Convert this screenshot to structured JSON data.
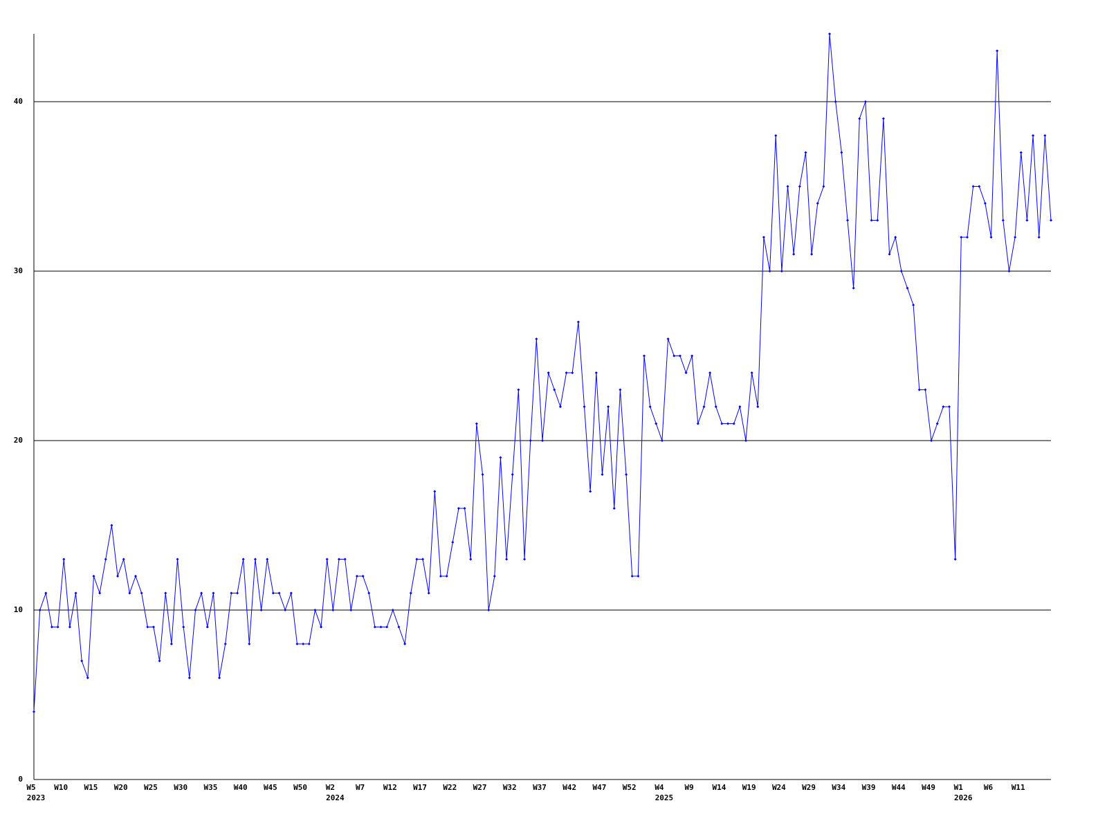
{
  "chart_data": {
    "type": "line",
    "categories": [
      "W5",
      null,
      null,
      null,
      null,
      "W10",
      null,
      null,
      null,
      null,
      "W15",
      null,
      null,
      null,
      null,
      "W20",
      null,
      null,
      null,
      null,
      "W25",
      null,
      null,
      null,
      null,
      "W30",
      null,
      null,
      null,
      null,
      "W35",
      null,
      null,
      null,
      null,
      "W40",
      null,
      null,
      null,
      null,
      "W45",
      null,
      null,
      null,
      null,
      "W50",
      null,
      null,
      null,
      null,
      "W2",
      null,
      null,
      null,
      null,
      "W7",
      null,
      null,
      null,
      null,
      "W12",
      null,
      null,
      null,
      null,
      "W17",
      null,
      null,
      null,
      null,
      "W22",
      null,
      null,
      null,
      null,
      "W27",
      null,
      null,
      null,
      null,
      "W32",
      null,
      null,
      null,
      null,
      "W37",
      null,
      null,
      null,
      null,
      "W42",
      null,
      null,
      null,
      null,
      "W47",
      null,
      null,
      null,
      null,
      "W52",
      null,
      null,
      null,
      null,
      "W4",
      null,
      null,
      null,
      null,
      "W9",
      null,
      null,
      null,
      null,
      "W14",
      null,
      null,
      null,
      null,
      "W19",
      null,
      null,
      null,
      null,
      "W24",
      null,
      null,
      null,
      null,
      "W29",
      null,
      null,
      null,
      null,
      "W34",
      null,
      null,
      null,
      null,
      "W39",
      null,
      null,
      null,
      null,
      "W44",
      null,
      null,
      null,
      null,
      "W49",
      null,
      null,
      null,
      null,
      "W1",
      null,
      null,
      null,
      null,
      "W6",
      null,
      null,
      null,
      null,
      "W11",
      null,
      null,
      null,
      null,
      null
    ],
    "years": [
      "2023",
      null,
      null,
      null,
      null,
      null,
      null,
      null,
      null,
      null,
      null,
      null,
      null,
      null,
      null,
      null,
      null,
      null,
      null,
      null,
      null,
      null,
      null,
      null,
      null,
      null,
      null,
      null,
      null,
      null,
      null,
      null,
      null,
      null,
      null,
      null,
      null,
      null,
      null,
      null,
      null,
      null,
      null,
      null,
      null,
      null,
      null,
      null,
      null,
      null,
      "2024",
      null,
      null,
      null,
      null,
      null,
      null,
      null,
      null,
      null,
      null,
      null,
      null,
      null,
      null,
      null,
      null,
      null,
      null,
      null,
      null,
      null,
      null,
      null,
      null,
      null,
      null,
      null,
      null,
      null,
      null,
      null,
      null,
      null,
      null,
      null,
      null,
      null,
      null,
      null,
      null,
      null,
      null,
      null,
      null,
      null,
      null,
      null,
      null,
      null,
      null,
      null,
      null,
      null,
      null,
      "2025",
      null,
      null,
      null,
      null,
      null,
      null,
      null,
      null,
      null,
      null,
      null,
      null,
      null,
      null,
      null,
      null,
      null,
      null,
      null,
      null,
      null,
      null,
      null,
      null,
      null,
      null,
      null,
      null,
      null,
      null,
      null,
      null,
      null,
      null,
      null,
      null,
      null,
      null,
      null,
      null,
      null,
      null,
      null,
      null,
      null,
      null,
      null,
      null,
      null,
      "2026",
      null,
      null,
      null,
      null,
      null,
      null,
      null,
      null,
      null,
      null,
      null,
      null,
      null,
      null,
      null
    ],
    "series": [
      {
        "color": "#0000ff",
        "values": [
          4,
          10,
          11,
          9,
          9,
          13,
          9,
          11,
          7,
          6,
          12,
          11,
          13,
          15,
          12,
          13,
          11,
          12,
          11,
          9,
          9,
          7,
          11,
          8,
          13,
          9,
          6,
          10,
          11,
          9,
          11,
          6,
          8,
          11,
          11,
          13,
          8,
          13,
          10,
          13,
          11,
          11,
          10,
          11,
          8,
          8,
          8,
          10,
          9,
          13,
          10,
          13,
          13,
          10,
          12,
          12,
          11,
          9,
          9,
          9,
          10,
          9,
          8,
          11,
          13,
          13,
          11,
          17,
          12,
          12,
          14,
          16,
          16,
          13,
          21,
          18,
          10,
          12,
          19,
          13,
          18,
          23,
          13,
          20,
          26,
          20,
          24,
          23,
          22,
          24,
          24,
          27,
          22,
          17,
          24,
          18,
          22,
          16,
          23,
          18,
          12,
          12,
          25,
          22,
          21,
          20,
          26,
          25,
          25,
          24,
          25,
          21,
          22,
          24,
          22,
          21,
          21,
          21,
          22,
          20,
          24,
          22,
          32,
          30,
          38,
          30,
          35,
          31,
          35,
          37,
          31,
          34,
          35,
          44,
          40,
          37,
          33,
          29,
          39,
          40,
          33,
          33,
          39,
          31,
          32,
          30,
          29,
          28,
          23,
          23,
          20,
          21,
          22,
          22,
          13,
          32,
          32,
          35,
          35,
          34,
          32,
          43,
          33,
          30,
          32,
          37,
          33,
          38,
          32,
          38,
          33
        ]
      }
    ],
    "ylim": [
      0,
      44
    ],
    "yticks": [
      0,
      10,
      20,
      30,
      40
    ],
    "grid": true
  }
}
